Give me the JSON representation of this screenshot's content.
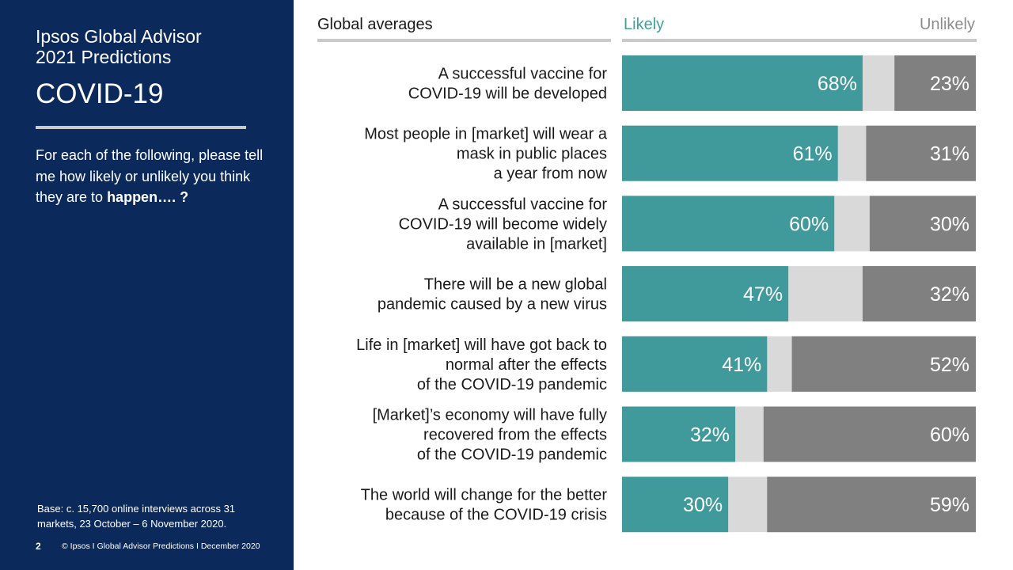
{
  "sidebar": {
    "subtitle_line1": "Ipsos Global Advisor",
    "subtitle_line2": "2021 Predictions",
    "title": "COVID-19",
    "question_text": "For each of the following, please tell me how likely or unlikely you think they are to ",
    "question_bold": "happen…. ?",
    "base_text": "Base: c. 15,700 online interviews across 31 markets,  23 October – 6 November 2020.",
    "page_number": "2",
    "footer_text": "© Ipsos I Global Advisor Predictions I December 2020"
  },
  "colors": {
    "likely": "#40999a",
    "unlikely": "#808080",
    "neutral": "#d9d9d9",
    "sidebar": "#0b2a5b"
  },
  "chart_data": {
    "type": "bar",
    "stacked": true,
    "orientation": "horizontal",
    "header": "Global averages",
    "categories": [
      [
        "A successful vaccine for",
        "COVID-19 will be developed"
      ],
      [
        "Most people in [market] will wear a",
        "mask in public places",
        "a year from now"
      ],
      [
        "A successful vaccine for",
        "COVID-19 will become widely",
        "available in [market]"
      ],
      [
        "There will be a new global",
        "pandemic caused by a new virus"
      ],
      [
        "Life in [market] will have got back to",
        "normal after the effects",
        "of the COVID-19 pandemic"
      ],
      [
        "[Market]’s economy will have fully",
        "recovered from the effects",
        "of the COVID-19 pandemic"
      ],
      [
        "The world will change for the better",
        "because of the COVID-19 crisis"
      ]
    ],
    "series": [
      {
        "name": "Likely",
        "values": [
          68,
          61,
          60,
          47,
          41,
          32,
          30
        ],
        "labels": [
          "68%",
          "61%",
          "60%",
          "47%",
          "41%",
          "32%",
          "30%"
        ]
      },
      {
        "name": "Unlikely",
        "values": [
          23,
          31,
          30,
          32,
          52,
          60,
          59
        ],
        "labels": [
          "23%",
          "31%",
          "30%",
          "32%",
          "52%",
          "60%",
          "59%"
        ]
      }
    ],
    "xlim": [
      0,
      100
    ]
  }
}
